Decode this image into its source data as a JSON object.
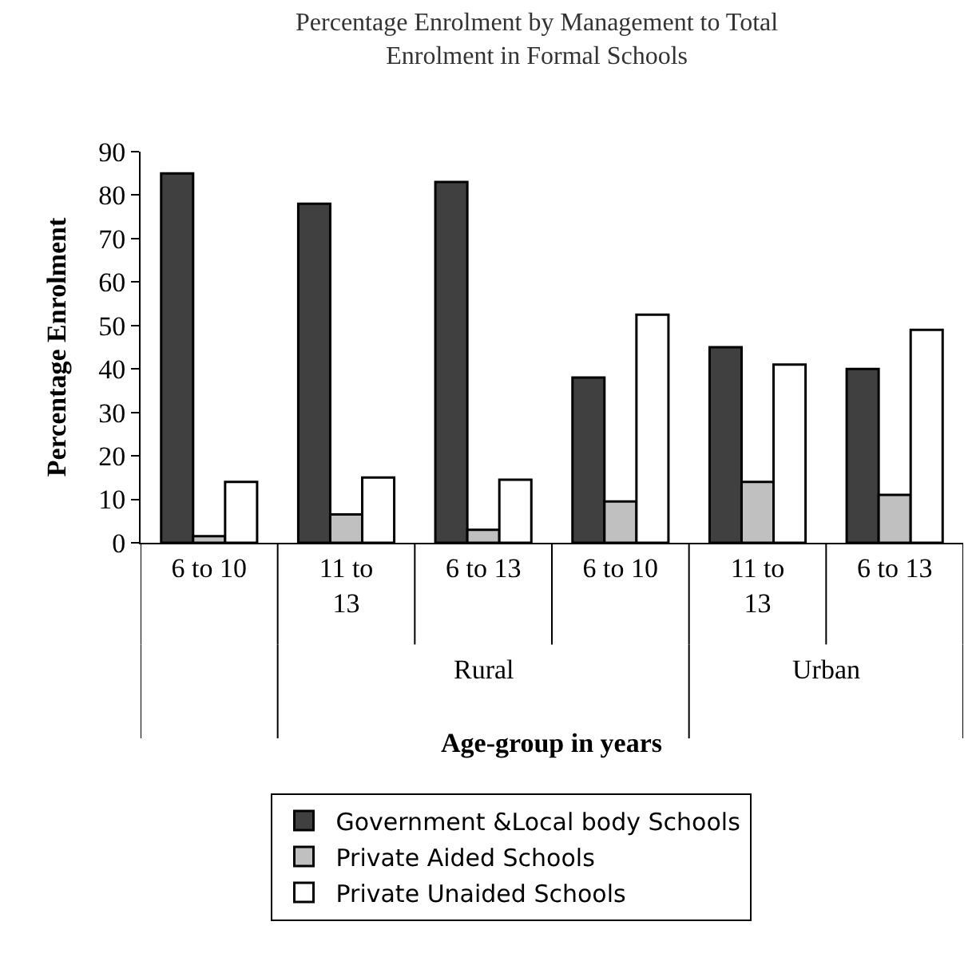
{
  "chart_data": {
    "type": "bar",
    "title": "Percentage Enrolment by Management to Total Enrolment in Formal Schools",
    "xlabel": "Age-group in years",
    "ylabel": "Percentage Enrolment",
    "categories": [
      "6 to 10",
      "11 to 13",
      "6 to 13",
      "6 to 10",
      "11 to 13",
      "6 to 13"
    ],
    "series": [
      {
        "name": "Government &Local body Schools",
        "color": "#404040",
        "values": [
          85,
          78,
          83,
          38,
          45,
          40
        ]
      },
      {
        "name": "Private Aided Schools",
        "color": "#c0c0c0",
        "values": [
          1.5,
          6.5,
          3,
          9.5,
          14,
          11
        ]
      },
      {
        "name": "Private Unaided Schools",
        "color": "#ffffff",
        "values": [
          14,
          15,
          14.5,
          52.5,
          41,
          49
        ]
      }
    ],
    "annotations": [
      "Rural",
      "Urban"
    ],
    "ylim": [
      0,
      90
    ],
    "yticks": [
      0,
      10,
      20,
      30,
      40,
      50,
      60,
      70,
      80,
      90
    ],
    "grid": false,
    "legend": "bottom"
  }
}
